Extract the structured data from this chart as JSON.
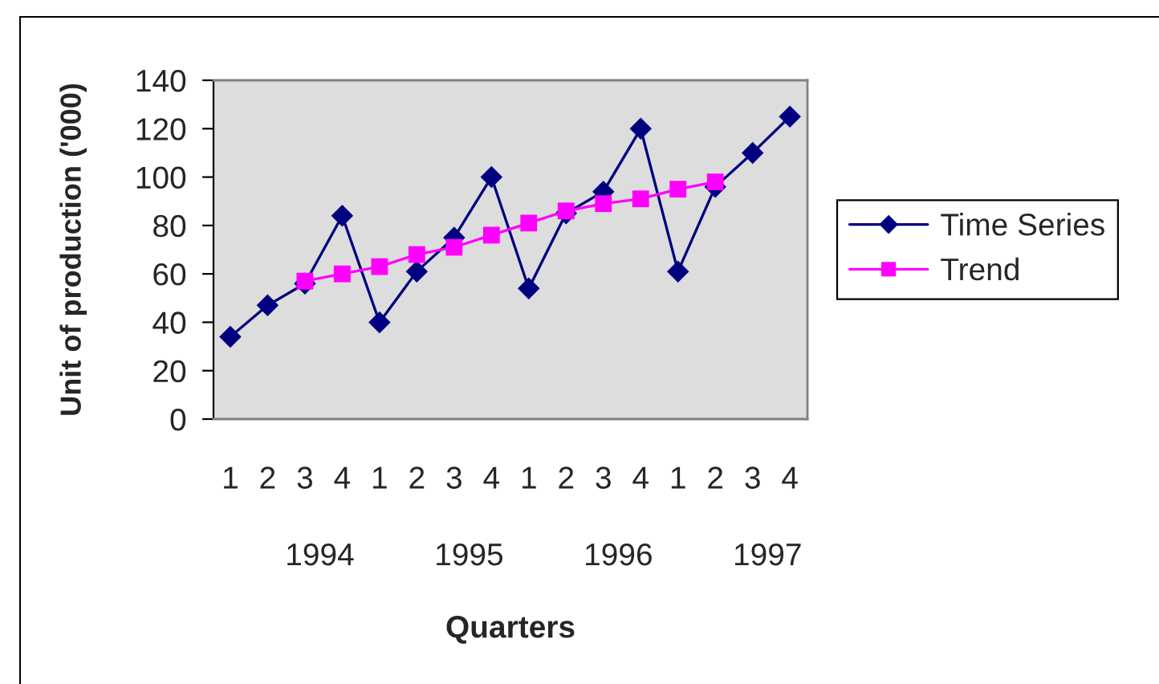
{
  "chart_data": {
    "type": "line",
    "xlabel": "Quarters",
    "ylabel": "Unit of production ('000)",
    "categories": [
      "1",
      "2",
      "3",
      "4",
      "1",
      "2",
      "3",
      "4",
      "1",
      "2",
      "3",
      "4",
      "1",
      "2",
      "3",
      "4"
    ],
    "series": [
      {
        "name": "Time Series",
        "color": "#000080",
        "marker": "diamond",
        "values": [
          34,
          47,
          56,
          84,
          40,
          61,
          75,
          100,
          54,
          85,
          94,
          120,
          61,
          96,
          110,
          125
        ]
      },
      {
        "name": "Trend",
        "color": "#ff00ff",
        "marker": "square",
        "values": [
          null,
          null,
          57,
          60,
          63,
          68,
          71,
          76,
          81,
          86,
          89,
          91,
          95,
          98,
          null,
          null
        ]
      }
    ],
    "ylim": [
      0,
      140
    ],
    "yticks": [
      0,
      20,
      40,
      60,
      80,
      100,
      120,
      140
    ],
    "legend": "right",
    "annotations": [
      "1994",
      "1995",
      "1996",
      "1997"
    ]
  }
}
